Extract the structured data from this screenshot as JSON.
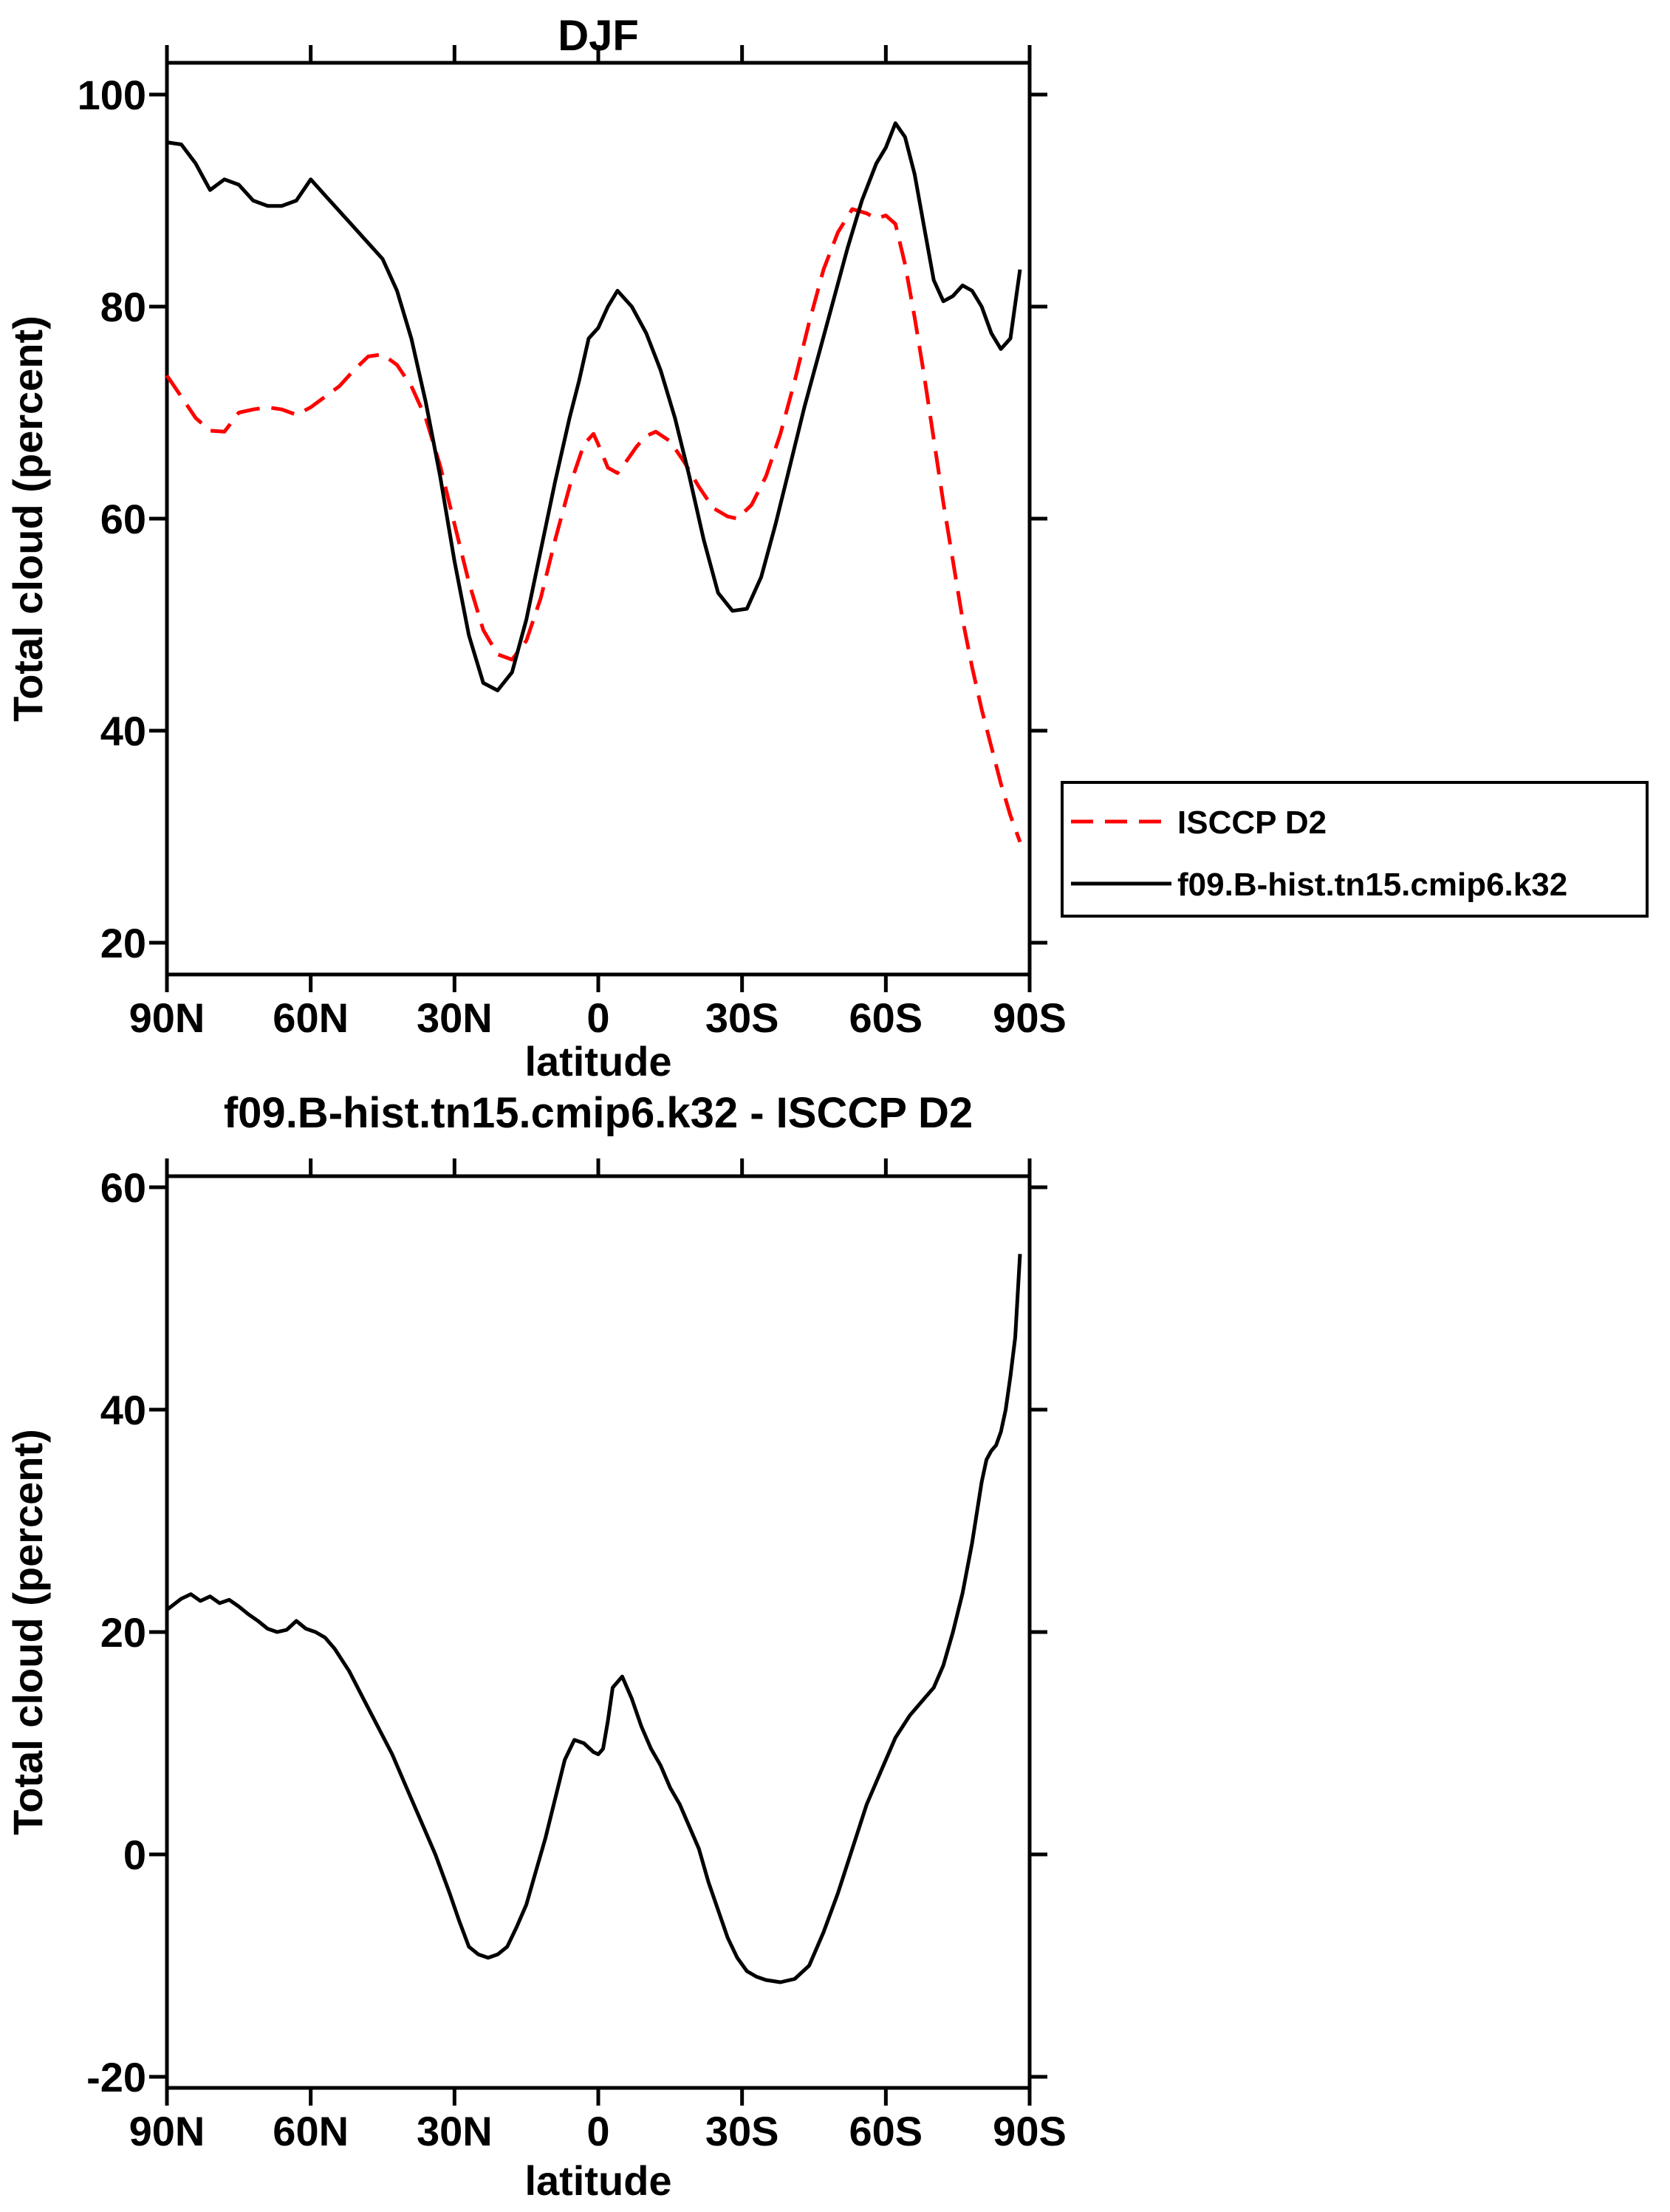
{
  "colors": {
    "background": "#ffffff",
    "axis": "#000000",
    "obs_line": "#ff0000",
    "model_line": "#000000"
  },
  "chart_data": [
    {
      "type": "line",
      "title": "DJF",
      "xlabel": "latitude",
      "ylabel": "Total cloud (percent)",
      "x_tick_labels": [
        "90N",
        "60N",
        "30N",
        "0",
        "30S",
        "60S",
        "90S"
      ],
      "x_tick_values": [
        90,
        60,
        30,
        0,
        -30,
        -60,
        -90
      ],
      "y_ticks": [
        20,
        40,
        60,
        80,
        100
      ],
      "x_range": [
        90,
        -90
      ],
      "y_range": [
        17,
        103
      ],
      "grid": false,
      "legend": {
        "position": "outside-right",
        "entries": [
          {
            "label": "ISCCP D2",
            "color": "#ff0000",
            "style": "dashed"
          },
          {
            "label": "f09.B-hist.tn15.cmip6.k32",
            "color": "#000000",
            "style": "solid"
          }
        ]
      },
      "series": [
        {
          "name": "ISCCP D2",
          "color": "#ff0000",
          "style": "dashed",
          "lat": [
            90,
            87,
            84,
            81,
            78,
            75,
            72,
            69,
            66,
            63,
            60,
            57,
            54,
            51,
            48,
            45,
            42,
            39,
            36,
            33,
            30,
            27,
            24,
            21,
            18,
            15,
            12,
            9,
            6,
            3,
            1,
            0,
            -2,
            -4,
            -6,
            -8,
            -10,
            -12,
            -15,
            -18,
            -21,
            -24,
            -27,
            -29,
            -32,
            -35,
            -38,
            -41,
            -44,
            -47,
            -50,
            -53,
            -56,
            -58,
            -60,
            -62,
            -64,
            -66,
            -68,
            -70,
            -72,
            -74,
            -76,
            -78,
            -80,
            -82,
            -84,
            -86,
            -88
          ],
          "values": [
            73.5,
            71.5,
            69.5,
            68.3,
            68.2,
            70.0,
            70.3,
            70.5,
            70.3,
            69.8,
            70.5,
            71.5,
            72.5,
            74.0,
            75.3,
            75.5,
            74.5,
            72.5,
            69.5,
            65.0,
            59.5,
            54.0,
            49.5,
            47.2,
            46.7,
            48.5,
            52.5,
            58.0,
            63.0,
            67.0,
            68.0,
            67.0,
            64.8,
            64.3,
            65.5,
            66.8,
            67.8,
            68.2,
            67.3,
            65.3,
            63.0,
            61.0,
            60.2,
            60.0,
            61.3,
            64.0,
            68.0,
            73.0,
            78.5,
            83.5,
            87.0,
            89.2,
            88.8,
            88.3,
            88.6,
            87.8,
            84.0,
            79.0,
            73.5,
            67.5,
            61.5,
            56.0,
            50.5,
            46.0,
            42.0,
            38.5,
            35.0,
            32.0,
            29.5
          ]
        },
        {
          "name": "f09.B-hist.tn15.cmip6.k32",
          "color": "#000000",
          "style": "solid",
          "lat": [
            90,
            87,
            84,
            81,
            78,
            75,
            72,
            69,
            66,
            63,
            60,
            57,
            54,
            51,
            48,
            45,
            42,
            39,
            36,
            33,
            30,
            27,
            24,
            21,
            18,
            15,
            12,
            9,
            6,
            4,
            2,
            0,
            -2,
            -4,
            -7,
            -10,
            -13,
            -16,
            -19,
            -22,
            -25,
            -28,
            -31,
            -34,
            -37,
            -40,
            -43,
            -46,
            -49,
            -52,
            -55,
            -58,
            -60,
            -62,
            -64,
            -66,
            -68,
            -70,
            -72,
            -74,
            -76,
            -78,
            -80,
            -82,
            -84,
            -86,
            -88
          ],
          "values": [
            95.5,
            95.3,
            93.5,
            91.0,
            92.0,
            91.5,
            90.0,
            89.5,
            89.5,
            90.0,
            92.0,
            90.5,
            89.0,
            87.5,
            86.0,
            84.5,
            81.5,
            77.0,
            71.0,
            64.0,
            56.0,
            49.0,
            44.5,
            43.8,
            45.5,
            50.5,
            57.0,
            63.5,
            69.5,
            73.0,
            77.0,
            78.0,
            80.0,
            81.5,
            80.0,
            77.5,
            74.0,
            69.5,
            64.0,
            58.0,
            53.0,
            51.3,
            51.5,
            54.5,
            59.5,
            65.0,
            70.5,
            75.5,
            80.5,
            85.5,
            90.0,
            93.5,
            95.0,
            97.3,
            96.0,
            92.5,
            87.5,
            82.5,
            80.5,
            81.0,
            82.0,
            81.5,
            80.0,
            77.5,
            76.0,
            77.0,
            83.5
          ]
        }
      ]
    },
    {
      "type": "line",
      "title": "f09.B-hist.tn15.cmip6.k32 - ISCCP D2",
      "xlabel": "latitude",
      "ylabel": "Total cloud (percent)",
      "x_tick_labels": [
        "90N",
        "60N",
        "30N",
        "0",
        "30S",
        "60S",
        "90S"
      ],
      "x_tick_values": [
        90,
        60,
        30,
        0,
        -30,
        -60,
        -90
      ],
      "y_ticks": [
        -20,
        0,
        20,
        40,
        60
      ],
      "x_range": [
        90,
        -90
      ],
      "y_range": [
        -21,
        61
      ],
      "grid": false,
      "series": [
        {
          "name": "f09.B-hist.tn15.cmip6.k32 - ISCCP D2",
          "color": "#000000",
          "style": "solid",
          "lat": [
            90,
            87,
            85,
            83,
            81,
            79,
            77,
            75,
            73,
            71,
            69,
            67,
            65,
            63,
            61,
            59,
            57,
            55,
            52,
            49,
            46,
            43,
            40,
            37,
            34,
            31,
            29,
            27,
            25,
            23,
            21,
            19,
            17,
            15,
            13,
            11,
            9,
            7,
            5,
            3,
            1,
            0,
            -1,
            -2,
            -3,
            -5,
            -7,
            -9,
            -11,
            -13,
            -15,
            -17,
            -19,
            -21,
            -23,
            -25,
            -27,
            -29,
            -31,
            -33,
            -35,
            -38,
            -41,
            -44,
            -47,
            -50,
            -53,
            -56,
            -59,
            -62,
            -65,
            -68,
            -70,
            -72,
            -74,
            -76,
            -78,
            -80,
            -81,
            -82,
            -83,
            -84,
            -85,
            -86,
            -87,
            -88
          ],
          "values": [
            22.0,
            23.0,
            23.4,
            22.8,
            23.2,
            22.6,
            22.9,
            22.3,
            21.6,
            21.0,
            20.3,
            20.0,
            20.2,
            21.0,
            20.3,
            20.0,
            19.5,
            18.5,
            16.5,
            14.0,
            11.5,
            9.0,
            6.0,
            3.0,
            0.0,
            -3.5,
            -6.0,
            -8.3,
            -9.0,
            -9.3,
            -9.0,
            -8.3,
            -6.5,
            -4.5,
            -1.5,
            1.5,
            5.0,
            8.5,
            10.3,
            10.0,
            9.2,
            9.0,
            9.5,
            12.0,
            15.0,
            16.0,
            14.0,
            11.5,
            9.5,
            8.0,
            6.0,
            4.5,
            2.5,
            0.5,
            -2.5,
            -5.0,
            -7.5,
            -9.3,
            -10.5,
            -11.0,
            -11.3,
            -11.5,
            -11.2,
            -10.0,
            -7.0,
            -3.5,
            0.5,
            4.5,
            7.5,
            10.5,
            12.5,
            14.0,
            15.0,
            17.0,
            20.0,
            23.5,
            28.0,
            33.5,
            35.5,
            36.3,
            36.8,
            38.0,
            40.0,
            43.0,
            46.5,
            54.0
          ]
        }
      ]
    }
  ]
}
